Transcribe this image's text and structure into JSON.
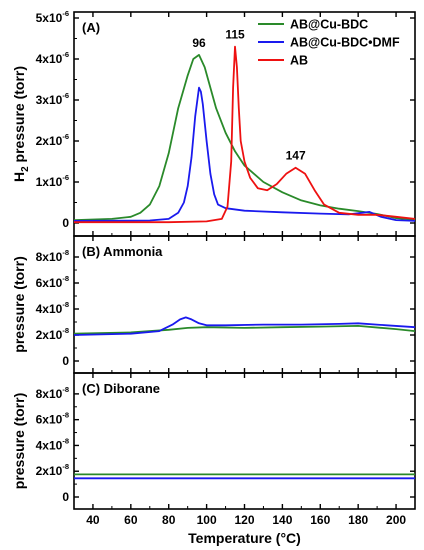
{
  "colors": {
    "green": "#2a8a2a",
    "blue": "#1a1aee",
    "red": "#ee1111"
  },
  "chart_data": [
    {
      "type": "line",
      "panel_label": "(A)",
      "ylabel": "H_2 pressure (torr)",
      "ylabel_parts": {
        "main": "H",
        "sub": "2",
        "rest": " pressure (torr)"
      },
      "xlim": [
        30,
        210
      ],
      "ylim": [
        0,
        5e-06
      ],
      "yticks": [
        {
          "value": 0,
          "mant": "0",
          "exp": ""
        },
        {
          "value": 1e-06,
          "mant": "1x10",
          "exp": "-6"
        },
        {
          "value": 2e-06,
          "mant": "2x10",
          "exp": "-6"
        },
        {
          "value": 3e-06,
          "mant": "3x10",
          "exp": "-6"
        },
        {
          "value": 4e-06,
          "mant": "4x10",
          "exp": "-6"
        },
        {
          "value": 5e-06,
          "mant": "5x10",
          "exp": "-6"
        }
      ],
      "legend_position": "top-right",
      "series": [
        {
          "name": "AB@Cu-BDC",
          "color": "#2a8a2a",
          "x": [
            30,
            50,
            60,
            65,
            70,
            75,
            80,
            85,
            90,
            93,
            96,
            99,
            102,
            105,
            110,
            115,
            120,
            130,
            140,
            150,
            160,
            170,
            180,
            190,
            200,
            210
          ],
          "y": [
            7e-08,
            1e-07,
            1.5e-07,
            2.5e-07,
            4.5e-07,
            9e-07,
            1.7e-06,
            2.8e-06,
            3.6e-06,
            4e-06,
            4.1e-06,
            3.8e-06,
            3.3e-06,
            2.8e-06,
            2.2e-06,
            1.75e-06,
            1.4e-06,
            1e-06,
            7.5e-07,
            5.5e-07,
            4.3e-07,
            3.5e-07,
            2.9e-07,
            2.2e-07,
            1.2e-07,
            8e-08
          ]
        },
        {
          "name": "AB@Cu-BDC•DMF",
          "color": "#1a1aee",
          "x": [
            30,
            70,
            80,
            85,
            88,
            90,
            92,
            94,
            96,
            97,
            98,
            100,
            102,
            104,
            106,
            110,
            120,
            140,
            160,
            175,
            182,
            186,
            192,
            200,
            210
          ],
          "y": [
            5e-08,
            6e-08,
            1e-07,
            2.5e-07,
            5e-07,
            9e-07,
            1.6e-06,
            2.6e-06,
            3.3e-06,
            3.2e-06,
            2.9e-06,
            2e-06,
            1.2e-06,
            7e-07,
            4.5e-07,
            3.6e-07,
            3e-07,
            2.6e-07,
            2.3e-07,
            2.1e-07,
            2.5e-07,
            2.7e-07,
            1.5e-07,
            7e-08,
            5e-08
          ]
        },
        {
          "name": "AB",
          "color": "#ee1111",
          "x": [
            30,
            80,
            100,
            108,
            111,
            113,
            114,
            115,
            116,
            117,
            118,
            120,
            123,
            127,
            132,
            137,
            142,
            147,
            152,
            157,
            162,
            170,
            180,
            190,
            200,
            210
          ],
          "y": [
            2e-08,
            2e-08,
            4e-08,
            1e-07,
            4e-07,
            1.5e-06,
            3.3e-06,
            4.3e-06,
            3.8e-06,
            2.8e-06,
            2e-06,
            1.5e-06,
            1.1e-06,
            8.5e-07,
            8e-07,
            9.5e-07,
            1.2e-06,
            1.35e-06,
            1.2e-06,
            8e-07,
            4.5e-07,
            2.5e-07,
            2e-07,
            2e-07,
            1.5e-07,
            1e-07
          ]
        }
      ],
      "annotations": [
        {
          "text": "96",
          "x": 96,
          "y": 4.1e-06
        },
        {
          "text": "115",
          "x": 115,
          "y": 4.3e-06
        },
        {
          "text": "147",
          "x": 147,
          "y": 1.35e-06
        }
      ]
    },
    {
      "type": "line",
      "panel_label": "(B) Ammonia",
      "ylabel": "pressure (torr)",
      "xlim": [
        30,
        210
      ],
      "ylim": [
        0,
        9e-08
      ],
      "yticks": [
        {
          "value": 0,
          "mant": "0",
          "exp": ""
        },
        {
          "value": 2e-08,
          "mant": "2x10",
          "exp": "-8"
        },
        {
          "value": 4e-08,
          "mant": "4x10",
          "exp": "-8"
        },
        {
          "value": 6e-08,
          "mant": "6x10",
          "exp": "-8"
        },
        {
          "value": 8e-08,
          "mant": "8x10",
          "exp": "-8"
        }
      ],
      "series": [
        {
          "name": "AB@Cu-BDC",
          "color": "#2a8a2a",
          "x": [
            30,
            60,
            80,
            90,
            100,
            120,
            140,
            160,
            180,
            200,
            210
          ],
          "y": [
            2.1e-08,
            2.2e-08,
            2.4e-08,
            2.55e-08,
            2.6e-08,
            2.55e-08,
            2.6e-08,
            2.65e-08,
            2.7e-08,
            2.45e-08,
            2.3e-08
          ]
        },
        {
          "name": "AB@Cu-BDC•DMF",
          "color": "#1a1aee",
          "x": [
            30,
            60,
            75,
            82,
            86,
            89,
            92,
            96,
            100,
            110,
            130,
            150,
            170,
            180,
            195,
            210
          ],
          "y": [
            2e-08,
            2.1e-08,
            2.3e-08,
            2.8e-08,
            3.2e-08,
            3.35e-08,
            3.2e-08,
            2.9e-08,
            2.75e-08,
            2.75e-08,
            2.8e-08,
            2.8e-08,
            2.85e-08,
            2.9e-08,
            2.75e-08,
            2.6e-08
          ]
        }
      ]
    },
    {
      "type": "line",
      "panel_label": "(C) Diborane",
      "ylabel": "pressure (torr)",
      "xlabel": "Temperature (°C)",
      "xlim": [
        30,
        210
      ],
      "xticks": [
        40,
        60,
        80,
        100,
        120,
        140,
        160,
        180,
        200
      ],
      "ylim": [
        0,
        9e-08
      ],
      "yticks": [
        {
          "value": 0,
          "mant": "0",
          "exp": ""
        },
        {
          "value": 2e-08,
          "mant": "2x10",
          "exp": "-8"
        },
        {
          "value": 4e-08,
          "mant": "4x10",
          "exp": "-8"
        },
        {
          "value": 6e-08,
          "mant": "6x10",
          "exp": "-8"
        },
        {
          "value": 8e-08,
          "mant": "8x10",
          "exp": "-8"
        }
      ],
      "series": [
        {
          "name": "AB@Cu-BDC",
          "color": "#2a8a2a",
          "x": [
            30,
            210
          ],
          "y": [
            1.75e-08,
            1.75e-08
          ]
        },
        {
          "name": "AB@Cu-BDC•DMF",
          "color": "#1a1aee",
          "x": [
            30,
            210
          ],
          "y": [
            1.45e-08,
            1.45e-08
          ]
        }
      ]
    }
  ]
}
